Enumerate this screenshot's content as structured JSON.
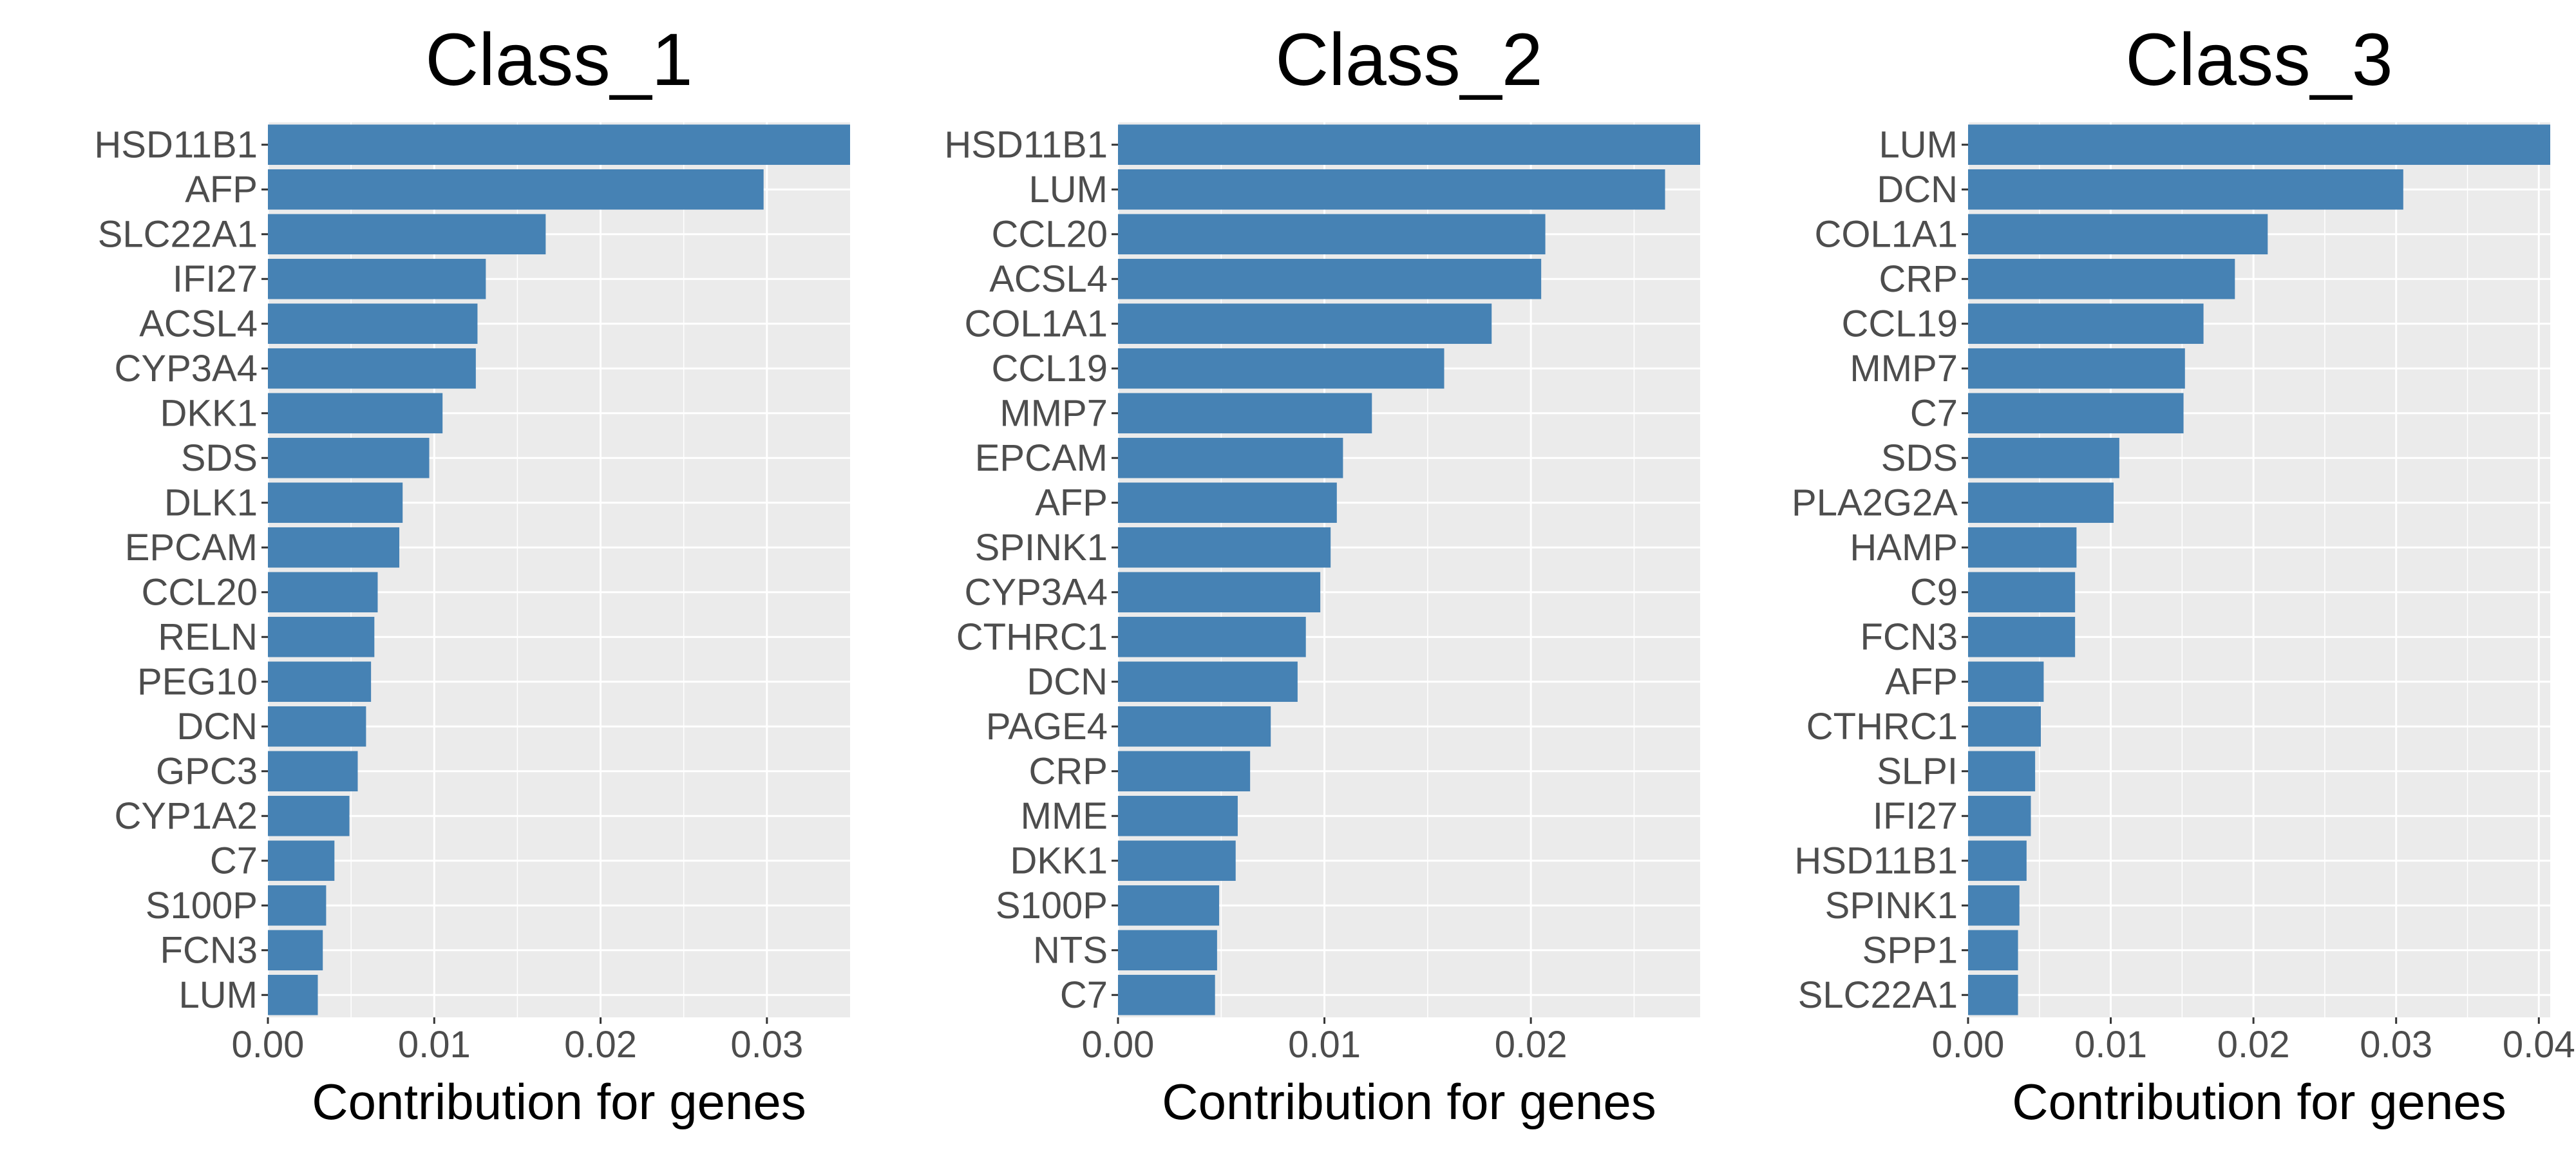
{
  "chart_data": [
    {
      "type": "bar",
      "orientation": "horizontal",
      "title": "Class_1",
      "xlabel": "Contribution for genes",
      "ylabel": "",
      "xlim": [
        0,
        0.035
      ],
      "xticks": [
        0,
        0.01,
        0.02,
        0.03
      ],
      "xtick_labels": [
        "0.00",
        "0.01",
        "0.02",
        "0.03"
      ],
      "grid": true,
      "bar_color": "#4682B4",
      "panel_color": "#EBEBEB",
      "categories": [
        "HSD11B1",
        "AFP",
        "SLC22A1",
        "IFI27",
        "ACSL4",
        "CYP3A4",
        "DKK1",
        "SDS",
        "DLK1",
        "EPCAM",
        "CCL20",
        "RELN",
        "PEG10",
        "DCN",
        "GPC3",
        "CYP1A2",
        "C7",
        "S100P",
        "FCN3",
        "LUM"
      ],
      "values": [
        0.0352,
        0.0298,
        0.0167,
        0.0131,
        0.0126,
        0.0125,
        0.0105,
        0.0097,
        0.0081,
        0.0079,
        0.0066,
        0.0064,
        0.0062,
        0.0059,
        0.0054,
        0.0049,
        0.004,
        0.0035,
        0.0033,
        0.003
      ]
    },
    {
      "type": "bar",
      "orientation": "horizontal",
      "title": "Class_2",
      "xlabel": "Contribution for genes",
      "ylabel": "",
      "xlim": [
        0,
        0.0282
      ],
      "xticks": [
        0,
        0.01,
        0.02
      ],
      "xtick_labels": [
        "0.00",
        "0.01",
        "0.02"
      ],
      "grid": true,
      "bar_color": "#4682B4",
      "panel_color": "#EBEBEB",
      "categories": [
        "HSD11B1",
        "LUM",
        "CCL20",
        "ACSL4",
        "COL1A1",
        "CCL19",
        "MMP7",
        "EPCAM",
        "AFP",
        "SPINK1",
        "CYP3A4",
        "CTHRC1",
        "DCN",
        "PAGE4",
        "CRP",
        "MME",
        "DKK1",
        "S100P",
        "NTS",
        "C7"
      ],
      "values": [
        0.0282,
        0.0265,
        0.0207,
        0.0205,
        0.0181,
        0.0158,
        0.0123,
        0.0109,
        0.0106,
        0.0103,
        0.0098,
        0.0091,
        0.0087,
        0.0074,
        0.0064,
        0.0058,
        0.0057,
        0.0049,
        0.0048,
        0.0047
      ]
    },
    {
      "type": "bar",
      "orientation": "horizontal",
      "title": "Class_3",
      "xlabel": "Contribution for genes",
      "ylabel": "",
      "xlim": [
        0,
        0.0408
      ],
      "xticks": [
        0,
        0.01,
        0.02,
        0.03,
        0.04
      ],
      "xtick_labels": [
        "0.00",
        "0.01",
        "0.02",
        "0.03",
        "0.04"
      ],
      "grid": true,
      "bar_color": "#4682B4",
      "panel_color": "#EBEBEB",
      "categories": [
        "LUM",
        "DCN",
        "COL1A1",
        "CRP",
        "CCL19",
        "MMP7",
        "C7",
        "SDS",
        "PLA2G2A",
        "HAMP",
        "C9",
        "FCN3",
        "AFP",
        "CTHRC1",
        "SLPI",
        "IFI27",
        "HSD11B1",
        "SPINK1",
        "SPP1",
        "SLC22A1"
      ],
      "values": [
        0.0408,
        0.0305,
        0.021,
        0.0187,
        0.0165,
        0.0152,
        0.0151,
        0.0106,
        0.0102,
        0.0076,
        0.0075,
        0.0075,
        0.0053,
        0.0051,
        0.0047,
        0.0044,
        0.0041,
        0.0036,
        0.0035,
        0.0035
      ]
    }
  ]
}
